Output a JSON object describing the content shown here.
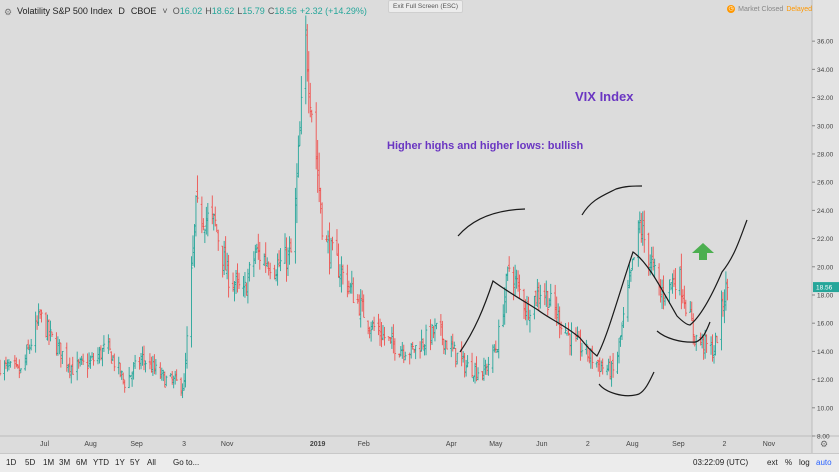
{
  "header": {
    "symbol": "Volatility S&P 500 Index",
    "interval": "D",
    "exchange": "CBOE",
    "open_label": "O",
    "open": "16.02",
    "high_label": "H",
    "high": "18.62",
    "low_label": "L",
    "low": "15.79",
    "close_label": "C",
    "close": "18.56",
    "change": "+2.32 (+14.29%)"
  },
  "exit_fullscreen": "Exit Full Screen (ESC)",
  "market_status": {
    "label": "Market Closed",
    "delayed": "Delayed",
    "icon": "clock-icon"
  },
  "annotations": {
    "title": "VIX Index",
    "subtitle": "Higher highs and higher lows: bullish"
  },
  "last_price_label": "18.56",
  "bottom_bar": {
    "timeframes": [
      "1D",
      "5D",
      "1M",
      "3M",
      "6M",
      "YTD",
      "1Y",
      "5Y",
      "All"
    ],
    "goto": "Go to...",
    "clock": "03:22:09 (UTC)",
    "options": [
      "ext",
      "%",
      "log",
      "auto"
    ]
  },
  "colors": {
    "background": "#dcdcdc",
    "up": "#26a69a",
    "down": "#ef5350",
    "annotation_text": "#6a36c2",
    "arrow": "#4caf50",
    "price_tag": "#26a69a"
  },
  "chart_data": {
    "type": "ohlc",
    "title": "VIX Index",
    "subtitle": "Higher highs and higher lows: bullish",
    "y_scale": "linear",
    "ylim": [
      8,
      37.5
    ],
    "y_ticks": [
      "8.00",
      "10.00",
      "12.00",
      "14.00",
      "16.00",
      "18.00",
      "20.00",
      "22.00",
      "24.00",
      "26.00",
      "28.00",
      "30.00",
      "32.00",
      "34.00",
      "36.00"
    ],
    "x_tick_labels": [
      "Jul",
      "Aug",
      "Sep",
      "3",
      "Nov",
      "2019",
      "Feb",
      "Apr",
      "May",
      "Jun",
      "2",
      "Aug",
      "Sep",
      "2",
      "Nov"
    ],
    "x_tick_dates": [
      "2018-07-01",
      "2018-08-01",
      "2018-09-01",
      "2018-10-03",
      "2018-11-01",
      "2019-01-01",
      "2019-02-01",
      "2019-04-01",
      "2019-05-01",
      "2019-06-01",
      "2019-07-02",
      "2019-08-01",
      "2019-09-01",
      "2019-10-02",
      "2019-11-01"
    ],
    "x_range": [
      "2018-06-01",
      "2019-11-30"
    ],
    "close_path": [
      [
        "2018-06-01",
        13.0
      ],
      [
        "2018-06-15",
        12.5
      ],
      [
        "2018-06-28",
        16.5
      ],
      [
        "2018-07-05",
        15.0
      ],
      [
        "2018-07-20",
        12.8
      ],
      [
        "2018-08-01",
        13.2
      ],
      [
        "2018-08-12",
        14.3
      ],
      [
        "2018-08-24",
        11.8
      ],
      [
        "2018-09-05",
        13.5
      ],
      [
        "2018-09-20",
        12.0
      ],
      [
        "2018-10-03",
        11.6
      ],
      [
        "2018-10-11",
        24.0
      ],
      [
        "2018-10-24",
        23.0
      ],
      [
        "2018-11-01",
        19.5
      ],
      [
        "2018-11-12",
        18.0
      ],
      [
        "2018-11-20",
        21.0
      ],
      [
        "2018-12-05",
        20.0
      ],
      [
        "2018-12-15",
        21.0
      ],
      [
        "2018-12-24",
        36.0
      ],
      [
        "2019-01-05",
        22.0
      ],
      [
        "2019-01-20",
        19.0
      ],
      [
        "2019-02-05",
        16.0
      ],
      [
        "2019-02-20",
        14.5
      ],
      [
        "2019-03-05",
        14.0
      ],
      [
        "2019-03-22",
        15.5
      ],
      [
        "2019-04-10",
        13.0
      ],
      [
        "2019-04-23",
        12.5
      ],
      [
        "2019-05-02",
        14.5
      ],
      [
        "2019-05-10",
        20.0
      ],
      [
        "2019-05-22",
        17.0
      ],
      [
        "2019-06-01",
        18.5
      ],
      [
        "2019-06-20",
        15.0
      ],
      [
        "2019-07-10",
        13.0
      ],
      [
        "2019-07-20",
        12.5
      ],
      [
        "2019-08-06",
        23.0
      ],
      [
        "2019-08-20",
        18.0
      ],
      [
        "2019-09-01",
        19.5
      ],
      [
        "2019-09-12",
        15.0
      ],
      [
        "2019-09-25",
        14.0
      ],
      [
        "2019-10-02",
        18.0
      ],
      [
        "2019-10-04",
        18.56
      ]
    ]
  }
}
